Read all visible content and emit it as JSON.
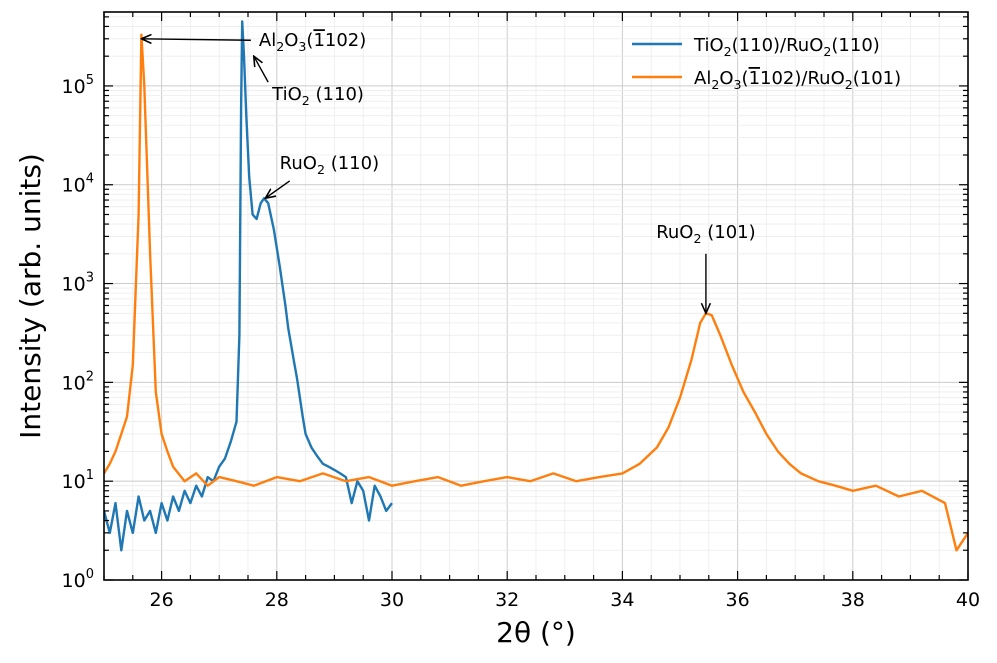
{
  "chart_data": {
    "type": "line",
    "xlabel": "2θ (°)",
    "ylabel": "Intensity (arb. units)",
    "xlim": [
      25,
      40
    ],
    "ylim": [
      1,
      560000
    ],
    "yscale": "log",
    "grid": true,
    "legend_position": "top-right",
    "x_ticks": [
      26,
      28,
      30,
      32,
      34,
      36,
      38,
      40
    ],
    "y_ticks": [
      1,
      10,
      100,
      1000,
      10000,
      100000
    ],
    "y_tick_labels": [
      {
        "base": "10",
        "exp": "0"
      },
      {
        "base": "10",
        "exp": "1"
      },
      {
        "base": "10",
        "exp": "2"
      },
      {
        "base": "10",
        "exp": "3"
      },
      {
        "base": "10",
        "exp": "4"
      },
      {
        "base": "10",
        "exp": "5"
      }
    ],
    "series": [
      {
        "name": "TiO2(110)/RuO2(110)",
        "name_parts": [
          [
            "TiO",
            ""
          ],
          [
            "2",
            "sub"
          ],
          [
            "(110)/RuO",
            ""
          ],
          [
            "2",
            "sub"
          ],
          [
            "(110)",
            ""
          ]
        ],
        "color": "#1f77b4",
        "points": [
          [
            25.0,
            5
          ],
          [
            25.1,
            3
          ],
          [
            25.2,
            6
          ],
          [
            25.3,
            2
          ],
          [
            25.4,
            5
          ],
          [
            25.5,
            3
          ],
          [
            25.6,
            7
          ],
          [
            25.7,
            4
          ],
          [
            25.8,
            5
          ],
          [
            25.9,
            3
          ],
          [
            26.0,
            6
          ],
          [
            26.1,
            4
          ],
          [
            26.2,
            7
          ],
          [
            26.3,
            5
          ],
          [
            26.4,
            8
          ],
          [
            26.5,
            6
          ],
          [
            26.6,
            9
          ],
          [
            26.7,
            7
          ],
          [
            26.8,
            11
          ],
          [
            26.9,
            10
          ],
          [
            27.0,
            14
          ],
          [
            27.1,
            17
          ],
          [
            27.2,
            25
          ],
          [
            27.3,
            40
          ],
          [
            27.35,
            300
          ],
          [
            27.38,
            60000
          ],
          [
            27.4,
            450000
          ],
          [
            27.43,
            200000
          ],
          [
            27.47,
            50000
          ],
          [
            27.52,
            12000
          ],
          [
            27.58,
            5000
          ],
          [
            27.65,
            4500
          ],
          [
            27.72,
            6500
          ],
          [
            27.78,
            7300
          ],
          [
            27.85,
            6500
          ],
          [
            27.95,
            3500
          ],
          [
            28.05,
            1500
          ],
          [
            28.15,
            600
          ],
          [
            28.2,
            350
          ],
          [
            28.3,
            160
          ],
          [
            28.35,
            110
          ],
          [
            28.45,
            45
          ],
          [
            28.5,
            30
          ],
          [
            28.6,
            22
          ],
          [
            28.7,
            18
          ],
          [
            28.8,
            15
          ],
          [
            28.9,
            14
          ],
          [
            29.0,
            13
          ],
          [
            29.1,
            12
          ],
          [
            29.2,
            11
          ],
          [
            29.3,
            6
          ],
          [
            29.4,
            10
          ],
          [
            29.5,
            8
          ],
          [
            29.6,
            4
          ],
          [
            29.7,
            9
          ],
          [
            29.8,
            7
          ],
          [
            29.9,
            5
          ],
          [
            30.0,
            6
          ]
        ]
      },
      {
        "name": "Al2O3(1̄102)/RuO2(101)",
        "name_parts": [
          [
            "Al",
            ""
          ],
          [
            "2",
            "sub"
          ],
          [
            "O",
            ""
          ],
          [
            "3",
            "sub"
          ],
          [
            "(",
            ""
          ],
          [
            "1",
            "over"
          ],
          [
            "102)/RuO",
            ""
          ],
          [
            "2",
            "sub"
          ],
          [
            "(101)",
            ""
          ]
        ],
        "color": "#ff7f0e",
        "points": [
          [
            25.0,
            12
          ],
          [
            25.1,
            15
          ],
          [
            25.2,
            20
          ],
          [
            25.3,
            30
          ],
          [
            25.4,
            45
          ],
          [
            25.5,
            150
          ],
          [
            25.6,
            5000
          ],
          [
            25.65,
            330000
          ],
          [
            25.7,
            100000
          ],
          [
            25.8,
            2000
          ],
          [
            25.9,
            80
          ],
          [
            26.0,
            30
          ],
          [
            26.1,
            20
          ],
          [
            26.2,
            14
          ],
          [
            26.4,
            10
          ],
          [
            26.6,
            12
          ],
          [
            26.8,
            9
          ],
          [
            27.0,
            11
          ],
          [
            27.3,
            10
          ],
          [
            27.6,
            9
          ],
          [
            28.0,
            11
          ],
          [
            28.4,
            10
          ],
          [
            28.8,
            12
          ],
          [
            29.2,
            10
          ],
          [
            29.6,
            11
          ],
          [
            30.0,
            9
          ],
          [
            30.4,
            10
          ],
          [
            30.8,
            11
          ],
          [
            31.2,
            9
          ],
          [
            31.6,
            10
          ],
          [
            32.0,
            11
          ],
          [
            32.4,
            10
          ],
          [
            32.8,
            12
          ],
          [
            33.2,
            10
          ],
          [
            33.6,
            11
          ],
          [
            34.0,
            12
          ],
          [
            34.3,
            15
          ],
          [
            34.6,
            22
          ],
          [
            34.8,
            35
          ],
          [
            35.0,
            70
          ],
          [
            35.2,
            170
          ],
          [
            35.35,
            400
          ],
          [
            35.45,
            500
          ],
          [
            35.55,
            480
          ],
          [
            35.7,
            300
          ],
          [
            35.9,
            150
          ],
          [
            36.1,
            80
          ],
          [
            36.3,
            50
          ],
          [
            36.5,
            30
          ],
          [
            36.7,
            20
          ],
          [
            36.9,
            15
          ],
          [
            37.1,
            12
          ],
          [
            37.4,
            10
          ],
          [
            37.7,
            9
          ],
          [
            38.0,
            8
          ],
          [
            38.4,
            9
          ],
          [
            38.8,
            7
          ],
          [
            39.2,
            8
          ],
          [
            39.6,
            6
          ],
          [
            39.8,
            2
          ],
          [
            40.0,
            3
          ]
        ]
      }
    ],
    "annotations": [
      {
        "id": "al2o3",
        "parts": [
          [
            "Al",
            ""
          ],
          [
            "2",
            "sub"
          ],
          [
            "O",
            ""
          ],
          [
            "3",
            "sub"
          ],
          [
            "(",
            ""
          ],
          [
            "1",
            "over"
          ],
          [
            "102)",
            ""
          ]
        ],
        "target": [
          25.65,
          300000
        ],
        "text_at": [
          27.55,
          290000
        ]
      },
      {
        "id": "tio2",
        "parts": [
          [
            "TiO",
            ""
          ],
          [
            "2",
            "sub"
          ],
          [
            " (110)",
            ""
          ]
        ],
        "target": [
          27.6,
          200000
        ],
        "text_at": [
          27.85,
          120000
        ]
      },
      {
        "id": "ruo2-110",
        "parts": [
          [
            "RuO",
            ""
          ],
          [
            "2",
            "sub"
          ],
          [
            " (110)",
            ""
          ]
        ],
        "target": [
          27.8,
          7300
        ],
        "text_at": [
          28.05,
          12000
        ]
      },
      {
        "id": "ruo2-101",
        "parts": [
          [
            "RuO",
            ""
          ],
          [
            "2",
            "sub"
          ],
          [
            " (101)",
            ""
          ]
        ],
        "target": [
          35.45,
          500
        ],
        "text_at": [
          35.45,
          2300
        ]
      }
    ]
  }
}
